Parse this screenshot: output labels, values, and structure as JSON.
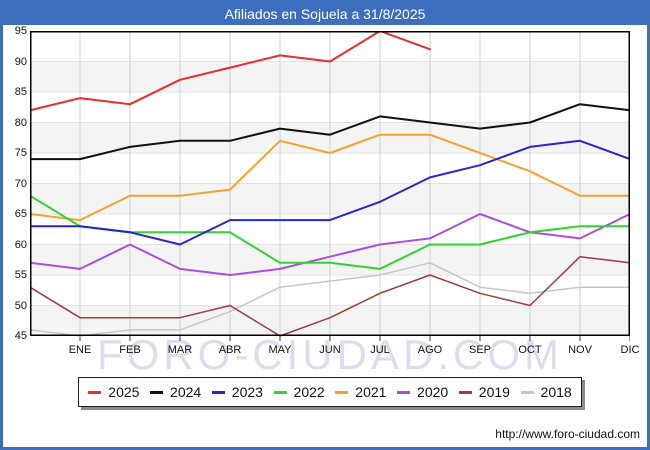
{
  "header": {
    "title": "Afiliados en Sojuela a 31/8/2025"
  },
  "watermark": "FORO-CIUDAD.COM",
  "footer": {
    "url": "http://www.foro-ciudad.com"
  },
  "chart_data": {
    "type": "line",
    "title": "Afiliados en Sojuela a 31/8/2025",
    "categories": [
      "ENE",
      "FEB",
      "MAR",
      "ABR",
      "MAY",
      "JUN",
      "JUL",
      "AGO",
      "SEP",
      "OCT",
      "NOV",
      "DIC"
    ],
    "ylim": [
      45,
      95
    ],
    "yticks": [
      95,
      90,
      85,
      80,
      75,
      70,
      65,
      60,
      55,
      50,
      45
    ],
    "grid": true,
    "band_fill": "#f4f4f4",
    "legend_position": "bottom",
    "note": "Each series starts at the left axis with the previous year's December value; 2025 data runs through AGO (31/8/2025).",
    "series": [
      {
        "name": "2025",
        "color": "#e62e2e",
        "dec_prev": 82,
        "values": [
          84,
          83,
          87,
          89,
          91,
          90,
          95,
          92
        ]
      },
      {
        "name": "2024",
        "color": "#111111",
        "dec_prev": 74,
        "values": [
          74,
          76,
          77,
          77,
          79,
          78,
          81,
          80,
          79,
          80,
          83,
          82
        ]
      },
      {
        "name": "2023",
        "color": "#2626cc",
        "dec_prev": 63,
        "values": [
          63,
          62,
          60,
          64,
          64,
          64,
          67,
          71,
          73,
          76,
          77,
          74
        ]
      },
      {
        "name": "2022",
        "color": "#2fd32f",
        "dec_prev": 68,
        "values": [
          63,
          62,
          62,
          62,
          57,
          57,
          56,
          60,
          60,
          62,
          63,
          63
        ]
      },
      {
        "name": "2021",
        "color": "#f2a32e",
        "dec_prev": 65,
        "values": [
          64,
          68,
          68,
          69,
          77,
          75,
          78,
          78,
          75,
          72,
          68,
          68
        ]
      },
      {
        "name": "2020",
        "color": "#aa4fdc",
        "dec_prev": 57,
        "values": [
          56,
          60,
          56,
          55,
          56,
          58,
          60,
          61,
          65,
          62,
          61,
          65
        ]
      },
      {
        "name": "2019",
        "color": "#a03c3c",
        "dec_prev": 53,
        "values": [
          48,
          48,
          48,
          50,
          45,
          48,
          52,
          55,
          52,
          50,
          58,
          57
        ]
      },
      {
        "name": "2018",
        "color": "#c6c6c6",
        "dec_prev": 46,
        "values": [
          45,
          46,
          46,
          49,
          53,
          54,
          55,
          57,
          53,
          52,
          53,
          53
        ]
      }
    ]
  }
}
